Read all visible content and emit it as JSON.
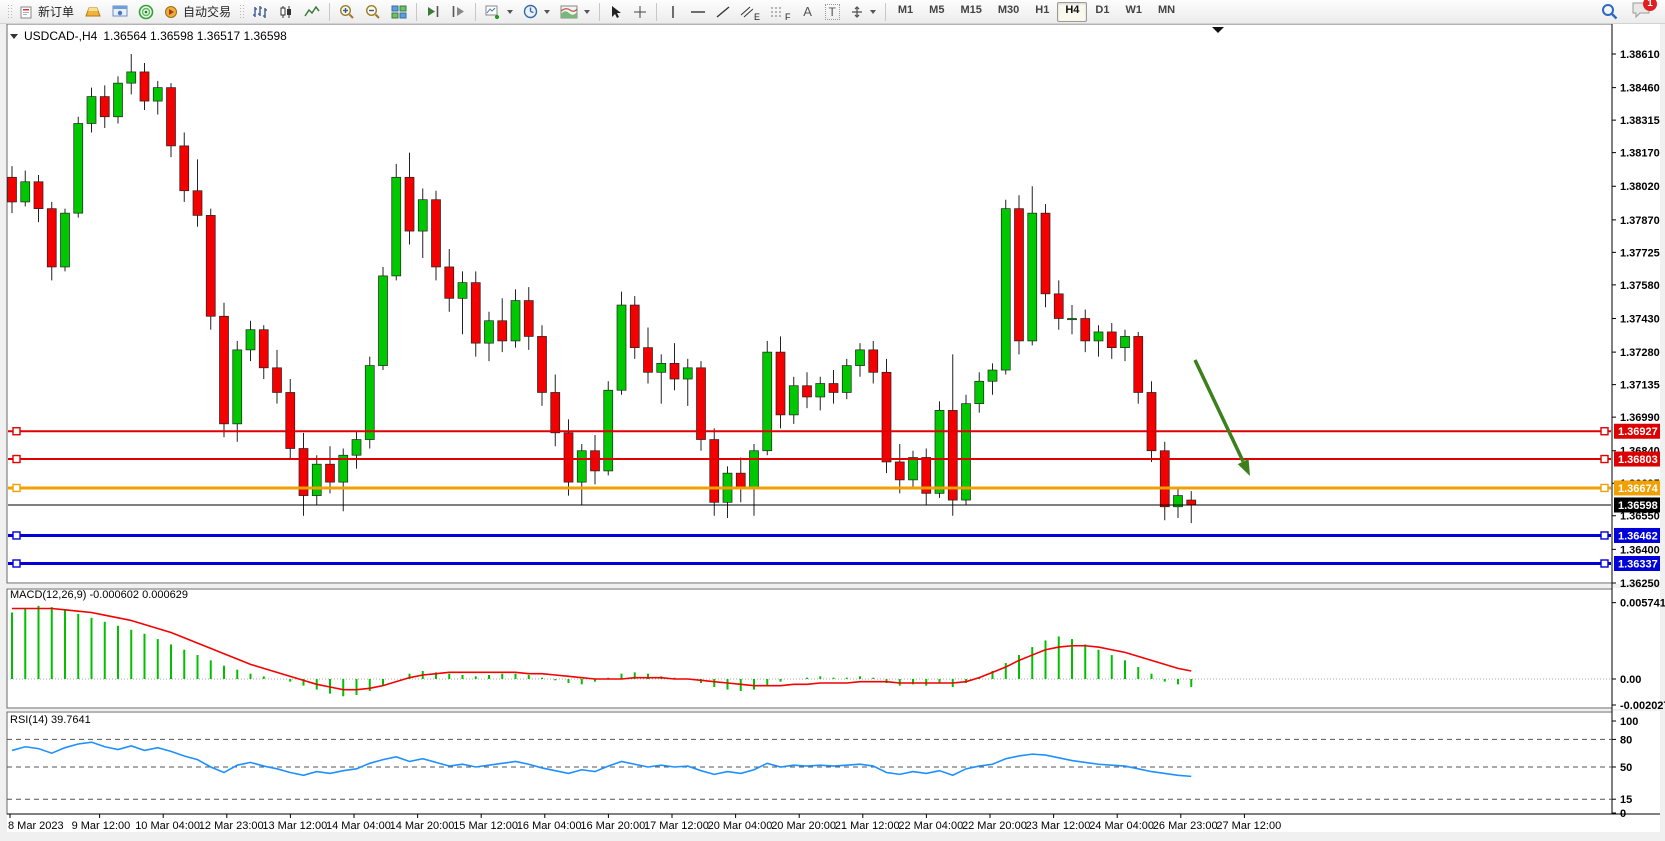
{
  "toolbar": {
    "new_order": "新订单",
    "auto_trading": "自动交易",
    "timeframes": [
      "M1",
      "M5",
      "M15",
      "M30",
      "H1",
      "H4",
      "D1",
      "W1",
      "MN"
    ],
    "active_timeframe": "H4",
    "notification_badge": "1",
    "letters": {
      "channel": "E",
      "fibo": "F",
      "text": "A",
      "label": "T"
    }
  },
  "chart_header": {
    "symbol_period": "USDCAD-,H4",
    "ohlc": "1.36564 1.36598 1.36517 1.36598"
  },
  "price_axis_ticks": [
    "1.38610",
    "1.38460",
    "1.38315",
    "1.38170",
    "1.38020",
    "1.37870",
    "1.37725",
    "1.37580",
    "1.37430",
    "1.37280",
    "1.37135",
    "1.36990",
    "1.36840",
    "1.36695",
    "1.36550",
    "1.36400",
    "1.36250"
  ],
  "price_tags": [
    {
      "value": "1.36927",
      "bg": "#dd0000"
    },
    {
      "value": "1.36803",
      "bg": "#dd0000"
    },
    {
      "value": "1.36674",
      "bg": "#f0a000"
    },
    {
      "value": "1.36598",
      "bg": "#000000"
    },
    {
      "value": "1.36462",
      "bg": "#0000d8"
    },
    {
      "value": "1.36337",
      "bg": "#0000d8"
    }
  ],
  "macd_panel": {
    "label": "MACD(12,26,9) -0.000602 0.000629",
    "axis": [
      {
        "text": "0.005741",
        "value": 0.005741
      },
      {
        "text": "0.00",
        "value": 0.0
      },
      {
        "text": "-0.002027",
        "value": -0.002027
      }
    ]
  },
  "rsi_panel": {
    "label": "RSI(14) 39.7641",
    "axis": [
      {
        "text": "100",
        "value": 100
      },
      {
        "text": "80",
        "value": 80
      },
      {
        "text": "50",
        "value": 50
      },
      {
        "text": "15",
        "value": 15
      },
      {
        "text": "0",
        "value": 0
      }
    ],
    "levels": [
      80,
      50,
      15
    ]
  },
  "time_axis": [
    "8 Mar 2023",
    "9 Mar 12:00",
    "10 Mar 04:00",
    "12 Mar 23:00",
    "13 Mar 12:00",
    "14 Mar 04:00",
    "14 Mar 20:00",
    "15 Mar 12:00",
    "16 Mar 04:00",
    "16 Mar 20:00",
    "17 Mar 12:00",
    "20 Mar 04:00",
    "20 Mar 20:00",
    "21 Mar 12:00",
    "22 Mar 04:00",
    "22 Mar 20:00",
    "23 Mar 12:00",
    "24 Mar 04:00",
    "26 Mar 23:00",
    "27 Mar 12:00"
  ],
  "colors": {
    "bull": "#00c800",
    "bear": "#f40000",
    "wick": "#222222",
    "macd_hist": "#00c000",
    "macd_signal": "#f40000",
    "rsi_line": "#1e90ff",
    "arrow": "#3c801c"
  },
  "chart_data": {
    "type": "candlestick+indicators",
    "symbol": "USDCAD-",
    "period": "H4",
    "price_range": [
      1.3625,
      1.3861
    ],
    "candles": [
      [
        1.3806,
        1.3811,
        1.379,
        1.3795
      ],
      [
        1.3795,
        1.3809,
        1.3793,
        1.3804
      ],
      [
        1.3804,
        1.3807,
        1.3786,
        1.3792
      ],
      [
        1.3792,
        1.3795,
        1.376,
        1.3766
      ],
      [
        1.3766,
        1.3792,
        1.3764,
        1.379
      ],
      [
        1.379,
        1.3833,
        1.3788,
        1.383
      ],
      [
        1.383,
        1.3846,
        1.3826,
        1.3842
      ],
      [
        1.3842,
        1.3847,
        1.3828,
        1.3833
      ],
      [
        1.3833,
        1.3851,
        1.383,
        1.3848
      ],
      [
        1.3848,
        1.3861,
        1.3843,
        1.3853
      ],
      [
        1.3853,
        1.3857,
        1.3836,
        1.384
      ],
      [
        1.384,
        1.3849,
        1.3834,
        1.3846
      ],
      [
        1.3846,
        1.3848,
        1.3815,
        1.382
      ],
      [
        1.382,
        1.3826,
        1.3795,
        1.38
      ],
      [
        1.38,
        1.3814,
        1.3784,
        1.3789
      ],
      [
        1.3789,
        1.3792,
        1.3738,
        1.3744
      ],
      [
        1.3744,
        1.375,
        1.369,
        1.3696
      ],
      [
        1.3696,
        1.3733,
        1.3688,
        1.3729
      ],
      [
        1.3729,
        1.3742,
        1.3724,
        1.3738
      ],
      [
        1.3738,
        1.374,
        1.3716,
        1.3721
      ],
      [
        1.3721,
        1.3729,
        1.3705,
        1.371
      ],
      [
        1.371,
        1.3716,
        1.368,
        1.3685
      ],
      [
        1.3685,
        1.3692,
        1.3655,
        1.3664
      ],
      [
        1.3664,
        1.3682,
        1.366,
        1.3678
      ],
      [
        1.3678,
        1.3686,
        1.3665,
        1.367
      ],
      [
        1.367,
        1.3685,
        1.3657,
        1.3682
      ],
      [
        1.3682,
        1.3693,
        1.3676,
        1.3689
      ],
      [
        1.3689,
        1.3726,
        1.3685,
        1.3722
      ],
      [
        1.3722,
        1.3766,
        1.372,
        1.3762
      ],
      [
        1.3762,
        1.3812,
        1.376,
        1.3806
      ],
      [
        1.3806,
        1.3817,
        1.3776,
        1.3782
      ],
      [
        1.3782,
        1.3801,
        1.377,
        1.3796
      ],
      [
        1.3796,
        1.38,
        1.376,
        1.3766
      ],
      [
        1.3766,
        1.3774,
        1.3746,
        1.3752
      ],
      [
        1.3752,
        1.3764,
        1.3736,
        1.3759
      ],
      [
        1.3759,
        1.3764,
        1.3726,
        1.3732
      ],
      [
        1.3732,
        1.3746,
        1.3724,
        1.3742
      ],
      [
        1.3742,
        1.3752,
        1.3728,
        1.3733
      ],
      [
        1.3733,
        1.3756,
        1.373,
        1.3751
      ],
      [
        1.3751,
        1.3757,
        1.3729,
        1.3735
      ],
      [
        1.3735,
        1.374,
        1.3704,
        1.371
      ],
      [
        1.371,
        1.3718,
        1.3686,
        1.3692
      ],
      [
        1.3692,
        1.3698,
        1.3664,
        1.367
      ],
      [
        1.367,
        1.3687,
        1.366,
        1.3684
      ],
      [
        1.3684,
        1.3691,
        1.3669,
        1.3675
      ],
      [
        1.3675,
        1.3715,
        1.3673,
        1.3711
      ],
      [
        1.3711,
        1.3755,
        1.3709,
        1.3749
      ],
      [
        1.3749,
        1.3753,
        1.3725,
        1.373
      ],
      [
        1.373,
        1.3739,
        1.3714,
        1.3719
      ],
      [
        1.3719,
        1.3727,
        1.3705,
        1.3723
      ],
      [
        1.3723,
        1.3732,
        1.3711,
        1.3716
      ],
      [
        1.3716,
        1.3725,
        1.3704,
        1.3721
      ],
      [
        1.3721,
        1.3724,
        1.3684,
        1.3689
      ],
      [
        1.3689,
        1.3694,
        1.3655,
        1.3661
      ],
      [
        1.3661,
        1.3677,
        1.3654,
        1.3674
      ],
      [
        1.3674,
        1.3681,
        1.3661,
        1.3667
      ],
      [
        1.3667,
        1.3687,
        1.3655,
        1.3684
      ],
      [
        1.3684,
        1.3733,
        1.3682,
        1.3728
      ],
      [
        1.3728,
        1.3735,
        1.3694,
        1.37
      ],
      [
        1.37,
        1.3717,
        1.3696,
        1.3713
      ],
      [
        1.3713,
        1.3719,
        1.3703,
        1.3708
      ],
      [
        1.3708,
        1.3717,
        1.3702,
        1.3714
      ],
      [
        1.3714,
        1.372,
        1.3705,
        1.371
      ],
      [
        1.371,
        1.3725,
        1.3707,
        1.3722
      ],
      [
        1.3722,
        1.3732,
        1.3717,
        1.3729
      ],
      [
        1.3729,
        1.3733,
        1.3714,
        1.3719
      ],
      [
        1.3719,
        1.3725,
        1.3674,
        1.3679
      ],
      [
        1.3679,
        1.3687,
        1.3665,
        1.3671
      ],
      [
        1.3671,
        1.3684,
        1.3667,
        1.3681
      ],
      [
        1.3681,
        1.3685,
        1.366,
        1.3665
      ],
      [
        1.3665,
        1.3706,
        1.3663,
        1.3702
      ],
      [
        1.3702,
        1.3727,
        1.3655,
        1.3662
      ],
      [
        1.3662,
        1.3709,
        1.366,
        1.3705
      ],
      [
        1.3705,
        1.3719,
        1.3701,
        1.3715
      ],
      [
        1.3715,
        1.3723,
        1.3709,
        1.372
      ],
      [
        1.372,
        1.3796,
        1.3718,
        1.3792
      ],
      [
        1.3792,
        1.3798,
        1.3727,
        1.3733
      ],
      [
        1.3733,
        1.3802,
        1.3731,
        1.379
      ],
      [
        1.379,
        1.3794,
        1.3748,
        1.3754
      ],
      [
        1.3754,
        1.376,
        1.3738,
        1.3743
      ],
      [
        1.3743,
        1.3749,
        1.3736,
        1.3743
      ],
      [
        1.3743,
        1.3747,
        1.3728,
        1.3733
      ],
      [
        1.3733,
        1.374,
        1.3726,
        1.3737
      ],
      [
        1.3737,
        1.3741,
        1.3725,
        1.373
      ],
      [
        1.373,
        1.3738,
        1.3724,
        1.3735
      ],
      [
        1.3735,
        1.3737,
        1.3705,
        1.371
      ],
      [
        1.371,
        1.3715,
        1.3679,
        1.3684
      ],
      [
        1.3684,
        1.3688,
        1.3653,
        1.3659
      ],
      [
        1.3659,
        1.3668,
        1.3654,
        1.3664
      ],
      [
        1.3662,
        1.3666,
        1.36517,
        1.36598
      ]
    ],
    "hlines": [
      {
        "price": 1.36927,
        "color": "#e00000",
        "width": 2,
        "handles": true
      },
      {
        "price": 1.36803,
        "color": "#e00000",
        "width": 2,
        "handles": true
      },
      {
        "price": 1.36674,
        "color": "#f0a000",
        "width": 3,
        "handles": true
      },
      {
        "price": 1.36598,
        "color": "#000000",
        "width": 1,
        "handles": false,
        "role": "bid"
      },
      {
        "price": 1.36462,
        "color": "#0000d8",
        "width": 3,
        "handles": true
      },
      {
        "price": 1.36337,
        "color": "#0000d8",
        "width": 3,
        "handles": true
      }
    ],
    "macd": {
      "range": [
        -0.002027,
        0.005741
      ],
      "histogram": [
        0.005,
        0.0053,
        0.0055,
        0.0054,
        0.0052,
        0.0049,
        0.0046,
        0.0043,
        0.004,
        0.0037,
        0.0034,
        0.003,
        0.0026,
        0.0022,
        0.0018,
        0.0014,
        0.001,
        0.0007,
        0.0004,
        0.0002,
        0.0,
        -0.0002,
        -0.0005,
        -0.0008,
        -0.0011,
        -0.0013,
        -0.0012,
        -0.0009,
        -0.0005,
        0.0,
        0.0004,
        0.0006,
        0.0005,
        0.0004,
        0.0003,
        0.0002,
        0.0003,
        0.0004,
        0.0004,
        0.0003,
        0.0001,
        -0.0001,
        -0.0003,
        -0.0004,
        -0.0002,
        0.0001,
        0.0004,
        0.0005,
        0.0004,
        0.0002,
        0.0001,
        0.0,
        -0.0003,
        -0.0006,
        -0.0008,
        -0.0009,
        -0.0008,
        -0.0005,
        -0.0002,
        0.0,
        0.0001,
        0.0002,
        0.0001,
        0.0001,
        0.0002,
        0.0001,
        -0.0003,
        -0.0005,
        -0.0004,
        -0.0005,
        -0.0003,
        -0.0006,
        -0.0003,
        0.0001,
        0.0006,
        0.0012,
        0.0018,
        0.0024,
        0.0029,
        0.0032,
        0.003,
        0.0026,
        0.0022,
        0.0018,
        0.0014,
        0.0009,
        0.0004,
        -0.0002,
        -0.0004,
        -0.0006
      ],
      "signal": [
        0.0053,
        0.0053,
        0.0053,
        0.0053,
        0.0052,
        0.0051,
        0.005,
        0.0048,
        0.0046,
        0.0044,
        0.0041,
        0.0038,
        0.0035,
        0.0031,
        0.0027,
        0.0023,
        0.0019,
        0.0015,
        0.0011,
        0.0008,
        0.0005,
        0.0002,
        -0.0001,
        -0.0004,
        -0.0006,
        -0.0008,
        -0.0008,
        -0.0007,
        -0.0005,
        -0.0002,
        0.0001,
        0.0003,
        0.0004,
        0.0005,
        0.0005,
        0.0005,
        0.0005,
        0.0005,
        0.0005,
        0.0004,
        0.0004,
        0.0003,
        0.0002,
        0.0001,
        0.0,
        0.0,
        0.0,
        0.0001,
        0.0001,
        0.0001,
        0.0,
        0.0,
        -0.0001,
        -0.0002,
        -0.0003,
        -0.0004,
        -0.0005,
        -0.0005,
        -0.0005,
        -0.0004,
        -0.0004,
        -0.0003,
        -0.0003,
        -0.0003,
        -0.0002,
        -0.0002,
        -0.0002,
        -0.0003,
        -0.0003,
        -0.0003,
        -0.0003,
        -0.0003,
        -0.0002,
        0.0001,
        0.0005,
        0.0009,
        0.0014,
        0.0018,
        0.0022,
        0.0024,
        0.0025,
        0.0025,
        0.0024,
        0.0022,
        0.002,
        0.0017,
        0.0014,
        0.0011,
        0.0008,
        0.0006
      ]
    },
    "rsi": {
      "range": [
        0,
        100
      ],
      "values": [
        68,
        72,
        70,
        65,
        71,
        75,
        77,
        72,
        69,
        73,
        68,
        71,
        67,
        62,
        58,
        50,
        44,
        52,
        55,
        51,
        48,
        44,
        41,
        45,
        43,
        46,
        48,
        54,
        58,
        61,
        56,
        59,
        55,
        51,
        53,
        50,
        52,
        54,
        56,
        53,
        49,
        46,
        43,
        47,
        45,
        51,
        56,
        53,
        50,
        52,
        50,
        51,
        46,
        42,
        45,
        43,
        47,
        54,
        50,
        52,
        51,
        52,
        51,
        52,
        53,
        51,
        44,
        42,
        45,
        43,
        46,
        41,
        48,
        51,
        53,
        59,
        62,
        64,
        63,
        60,
        57,
        55,
        53,
        52,
        51,
        48,
        45,
        43,
        41,
        39.8
      ]
    },
    "arrow_annotation": {
      "start": [
        1195,
        360
      ],
      "end": [
        1250,
        476
      ]
    }
  }
}
